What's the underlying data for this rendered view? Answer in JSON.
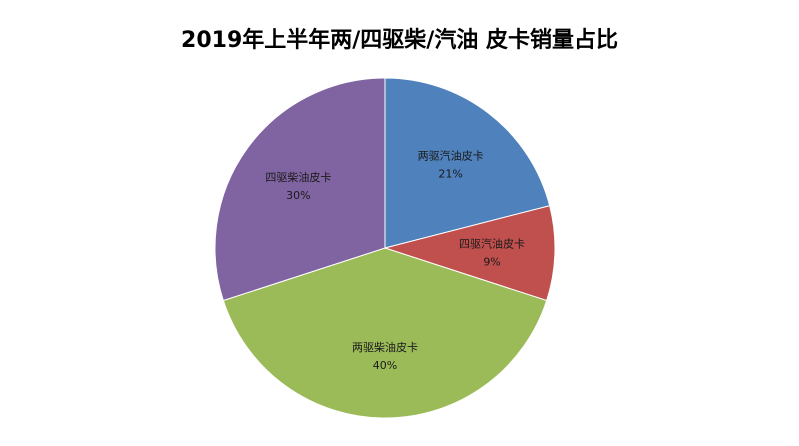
{
  "chart_data": {
    "type": "pie",
    "title": "2019年上半年两/四驱柴/汽油 皮卡销量占比",
    "slices": [
      {
        "label": "两驱汽油皮卡",
        "value": 21,
        "value_label": "21%",
        "color": "#4F81BD"
      },
      {
        "label": "四驱汽油皮卡",
        "value": 9,
        "value_label": "9%",
        "color": "#C0504D"
      },
      {
        "label": "两驱柴油皮卡",
        "value": 40,
        "value_label": "40%",
        "color": "#9BBB59"
      },
      {
        "label": "四驱柴油皮卡",
        "value": 30,
        "value_label": "30%",
        "color": "#8064A2"
      }
    ],
    "start_angle": "12 o'clock",
    "direction": "clockwise",
    "legend": "none"
  }
}
